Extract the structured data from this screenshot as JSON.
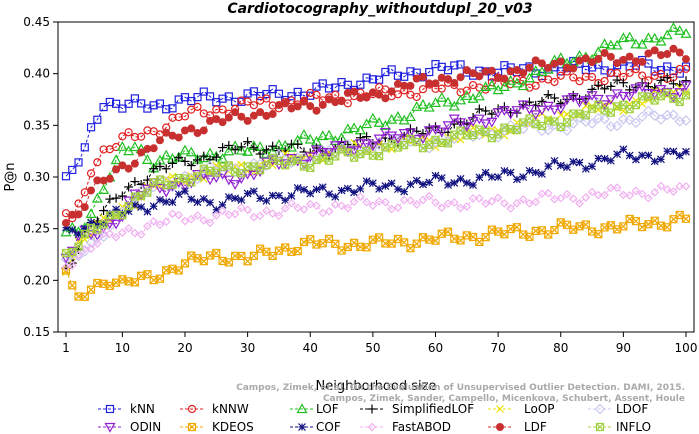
{
  "chart_data": {
    "type": "line",
    "title": "Cardiotocography_withoutdupl_20_v03",
    "xlabel": "Neighborhood size",
    "ylabel": "P@n",
    "xlim": [
      1,
      100
    ],
    "ylim": [
      0.15,
      0.45
    ],
    "xticks": [
      1,
      10,
      20,
      30,
      40,
      50,
      60,
      70,
      80,
      90,
      100
    ],
    "yticks": [
      0.15,
      0.2,
      0.25,
      0.3,
      0.35,
      0.4,
      0.45
    ],
    "grid": false,
    "legend_position": "bottom",
    "watermark": {
      "line1": "Campos, Zimek, et al. On the Evaluation of Unsupervised Outlier Detection. DAMI, 2015.",
      "line2": "Campos, Zimek, Sander, Campello, Micenkova, Schubert, Assent, Houle"
    },
    "series": [
      {
        "name": "kNN",
        "color": "#2020e0",
        "marker": "square",
        "anchors": [
          [
            1,
            0.295
          ],
          [
            2,
            0.305
          ],
          [
            3,
            0.315
          ],
          [
            4,
            0.325
          ],
          [
            5,
            0.345
          ],
          [
            6,
            0.36
          ],
          [
            7,
            0.373
          ],
          [
            10,
            0.37
          ],
          [
            15,
            0.368
          ],
          [
            20,
            0.375
          ],
          [
            30,
            0.378
          ],
          [
            40,
            0.382
          ],
          [
            50,
            0.395
          ],
          [
            60,
            0.405
          ],
          [
            70,
            0.402
          ],
          [
            80,
            0.405
          ],
          [
            90,
            0.408
          ],
          [
            100,
            0.405
          ]
        ]
      },
      {
        "name": "kNNW",
        "color": "#e02020",
        "marker": "circle",
        "anchors": [
          [
            1,
            0.265
          ],
          [
            2,
            0.26
          ],
          [
            3,
            0.27
          ],
          [
            4,
            0.285
          ],
          [
            5,
            0.31
          ],
          [
            7,
            0.325
          ],
          [
            10,
            0.335
          ],
          [
            15,
            0.345
          ],
          [
            20,
            0.36
          ],
          [
            30,
            0.37
          ],
          [
            40,
            0.375
          ],
          [
            50,
            0.38
          ],
          [
            60,
            0.385
          ],
          [
            70,
            0.39
          ],
          [
            80,
            0.395
          ],
          [
            90,
            0.398
          ],
          [
            100,
            0.4
          ]
        ]
      },
      {
        "name": "LOF",
        "color": "#20c020",
        "marker": "triangle",
        "anchors": [
          [
            1,
            0.245
          ],
          [
            3,
            0.25
          ],
          [
            5,
            0.265
          ],
          [
            7,
            0.29
          ],
          [
            9,
            0.31
          ],
          [
            10,
            0.325
          ],
          [
            12,
            0.33
          ],
          [
            15,
            0.315
          ],
          [
            20,
            0.32
          ],
          [
            30,
            0.325
          ],
          [
            40,
            0.335
          ],
          [
            50,
            0.35
          ],
          [
            60,
            0.37
          ],
          [
            70,
            0.385
          ],
          [
            80,
            0.41
          ],
          [
            90,
            0.43
          ],
          [
            100,
            0.44
          ]
        ]
      },
      {
        "name": "SimplifiedLOF",
        "color": "#000000",
        "marker": "plus",
        "anchors": [
          [
            1,
            0.21
          ],
          [
            3,
            0.235
          ],
          [
            5,
            0.255
          ],
          [
            7,
            0.265
          ],
          [
            10,
            0.285
          ],
          [
            12,
            0.295
          ],
          [
            15,
            0.305
          ],
          [
            20,
            0.315
          ],
          [
            30,
            0.33
          ],
          [
            40,
            0.325
          ],
          [
            50,
            0.335
          ],
          [
            60,
            0.345
          ],
          [
            70,
            0.365
          ],
          [
            80,
            0.375
          ],
          [
            90,
            0.39
          ],
          [
            100,
            0.39
          ]
        ]
      },
      {
        "name": "LoOP",
        "color": "#e8e000",
        "marker": "x",
        "anchors": [
          [
            1,
            0.215
          ],
          [
            3,
            0.235
          ],
          [
            5,
            0.245
          ],
          [
            10,
            0.27
          ],
          [
            15,
            0.29
          ],
          [
            20,
            0.3
          ],
          [
            30,
            0.31
          ],
          [
            40,
            0.32
          ],
          [
            50,
            0.33
          ],
          [
            60,
            0.335
          ],
          [
            70,
            0.345
          ],
          [
            80,
            0.36
          ],
          [
            90,
            0.37
          ],
          [
            100,
            0.385
          ]
        ]
      },
      {
        "name": "LDOF",
        "color": "#c8c8f0",
        "marker": "diamond",
        "anchors": [
          [
            1,
            0.22
          ],
          [
            3,
            0.225
          ],
          [
            5,
            0.23
          ],
          [
            10,
            0.27
          ],
          [
            15,
            0.29
          ],
          [
            20,
            0.3
          ],
          [
            30,
            0.31
          ],
          [
            40,
            0.32
          ],
          [
            50,
            0.33
          ],
          [
            60,
            0.335
          ],
          [
            70,
            0.345
          ],
          [
            80,
            0.35
          ],
          [
            90,
            0.355
          ],
          [
            100,
            0.36
          ]
        ]
      },
      {
        "name": "ODIN",
        "color": "#9020d0",
        "marker": "triangle-down",
        "anchors": [
          [
            1,
            0.22
          ],
          [
            3,
            0.24
          ],
          [
            5,
            0.245
          ],
          [
            8,
            0.255
          ],
          [
            10,
            0.265
          ],
          [
            12,
            0.28
          ],
          [
            15,
            0.29
          ],
          [
            20,
            0.295
          ],
          [
            25,
            0.3
          ],
          [
            30,
            0.3
          ],
          [
            35,
            0.315
          ],
          [
            40,
            0.32
          ],
          [
            50,
            0.335
          ],
          [
            60,
            0.345
          ],
          [
            70,
            0.36
          ],
          [
            80,
            0.37
          ],
          [
            90,
            0.38
          ],
          [
            100,
            0.385
          ]
        ]
      },
      {
        "name": "KDEOS",
        "color": "#f0a800",
        "marker": "square-x",
        "anchors": [
          [
            1,
            0.21
          ],
          [
            2,
            0.19
          ],
          [
            3,
            0.18
          ],
          [
            5,
            0.195
          ],
          [
            8,
            0.2
          ],
          [
            10,
            0.195
          ],
          [
            15,
            0.205
          ],
          [
            20,
            0.215
          ],
          [
            25,
            0.225
          ],
          [
            30,
            0.22
          ],
          [
            35,
            0.23
          ],
          [
            40,
            0.235
          ],
          [
            50,
            0.235
          ],
          [
            60,
            0.24
          ],
          [
            70,
            0.245
          ],
          [
            80,
            0.25
          ],
          [
            90,
            0.252
          ],
          [
            100,
            0.26
          ]
        ]
      },
      {
        "name": "COF",
        "color": "#101080",
        "marker": "star",
        "anchors": [
          [
            1,
            0.245
          ],
          [
            5,
            0.255
          ],
          [
            10,
            0.265
          ],
          [
            15,
            0.275
          ],
          [
            20,
            0.28
          ],
          [
            25,
            0.275
          ],
          [
            30,
            0.28
          ],
          [
            40,
            0.285
          ],
          [
            50,
            0.29
          ],
          [
            60,
            0.295
          ],
          [
            70,
            0.3
          ],
          [
            80,
            0.31
          ],
          [
            90,
            0.32
          ],
          [
            100,
            0.322
          ]
        ]
      },
      {
        "name": "FastABOD",
        "color": "#f0b0f0",
        "marker": "diamond-small",
        "anchors": [
          [
            1,
            0.215
          ],
          [
            3,
            0.225
          ],
          [
            5,
            0.235
          ],
          [
            10,
            0.245
          ],
          [
            15,
            0.255
          ],
          [
            20,
            0.26
          ],
          [
            30,
            0.265
          ],
          [
            40,
            0.27
          ],
          [
            50,
            0.275
          ],
          [
            60,
            0.275
          ],
          [
            70,
            0.275
          ],
          [
            80,
            0.28
          ],
          [
            90,
            0.285
          ],
          [
            100,
            0.287
          ]
        ]
      },
      {
        "name": "LDF",
        "color": "#c83030",
        "marker": "dot",
        "anchors": [
          [
            1,
            0.26
          ],
          [
            3,
            0.265
          ],
          [
            5,
            0.285
          ],
          [
            8,
            0.3
          ],
          [
            10,
            0.31
          ],
          [
            15,
            0.33
          ],
          [
            20,
            0.345
          ],
          [
            30,
            0.36
          ],
          [
            40,
            0.37
          ],
          [
            50,
            0.38
          ],
          [
            60,
            0.395
          ],
          [
            70,
            0.4
          ],
          [
            80,
            0.41
          ],
          [
            90,
            0.415
          ],
          [
            100,
            0.42
          ]
        ]
      },
      {
        "name": "INFLO",
        "color": "#a0d040",
        "marker": "square-x",
        "anchors": [
          [
            1,
            0.225
          ],
          [
            3,
            0.235
          ],
          [
            5,
            0.245
          ],
          [
            10,
            0.27
          ],
          [
            15,
            0.29
          ],
          [
            20,
            0.3
          ],
          [
            30,
            0.31
          ],
          [
            40,
            0.315
          ],
          [
            50,
            0.325
          ],
          [
            60,
            0.335
          ],
          [
            70,
            0.345
          ],
          [
            80,
            0.355
          ],
          [
            90,
            0.37
          ],
          [
            100,
            0.38
          ]
        ]
      }
    ]
  }
}
